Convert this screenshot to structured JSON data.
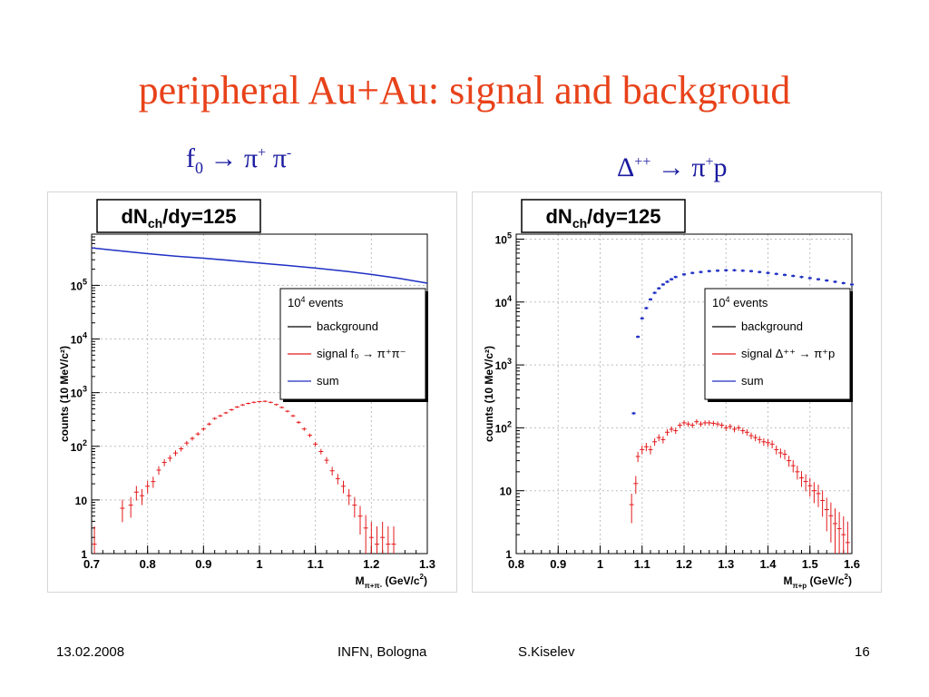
{
  "slide": {
    "title": "peripheral Au+Au: signal and backgroud",
    "subtitle_left": {
      "p1": "f",
      "p1sub": "0",
      "arrow": "→",
      "p2": "π",
      "p2sup": "+",
      "p3": "π",
      "p3sup": "-"
    },
    "subtitle_right": {
      "p1": "Δ",
      "p1sup": "++",
      "arrow": "→",
      "p2": "π",
      "p2sup": "+",
      "p3": "p"
    },
    "footer": {
      "date": "13.02.2008",
      "place": "INFN, Bologna",
      "author": "S.Kiselev",
      "page": "16"
    }
  },
  "colors": {
    "title": "#e8421a",
    "subhead": "#1a1aa0",
    "signal": "#e31a1c",
    "sum": "#1f2fc4",
    "background": "#000000",
    "grid": "#bdbdbd"
  },
  "chart_data": [
    {
      "type": "scatter",
      "title": "dNch/dy=125",
      "title_parts": {
        "a": "dN",
        "sub": "ch",
        "b": "/dy=125"
      },
      "ylabel": "counts (10 MeV/c²)",
      "xlabel": "Mπ+π- (GeV/c²)",
      "xlabel_parts": {
        "a": "M",
        "sub": "π+π-",
        "b": " (GeV/c",
        "sup": "2",
        "c": ")"
      },
      "xlim": [
        0.7,
        1.3
      ],
      "ylim": [
        1,
        900000
      ],
      "yscale": "log",
      "xticks": [
        0.7,
        0.8,
        0.9,
        1.0,
        1.1,
        1.2,
        1.3
      ],
      "xtick_labels": [
        "0.7",
        "0.8",
        "0.9",
        "1",
        "1.1",
        "1.2",
        "1.3"
      ],
      "yticks": [
        1,
        10,
        100,
        1000,
        10000,
        100000
      ],
      "ytick_labels": [
        {
          "base": "1",
          "exp": ""
        },
        {
          "base": "10",
          "exp": ""
        },
        {
          "base": "10",
          "exp": "2"
        },
        {
          "base": "10",
          "exp": "3"
        },
        {
          "base": "10",
          "exp": "4"
        },
        {
          "base": "10",
          "exp": "5"
        }
      ],
      "grid": true,
      "legend": {
        "position": "right",
        "header": {
          "base": "10",
          "exp": "4",
          "rest": " events"
        },
        "entries": [
          {
            "label": "background",
            "color": "#000000"
          },
          {
            "label": "signal f₀ → π⁺π⁻",
            "color": "#e31a1c"
          },
          {
            "label": "sum",
            "color": "#1f2fc4"
          }
        ]
      },
      "series": [
        {
          "name": "sum",
          "style": "line",
          "x": [
            0.7,
            0.75,
            0.8,
            0.85,
            0.9,
            0.95,
            1.0,
            1.05,
            1.1,
            1.15,
            1.2,
            1.25,
            1.3
          ],
          "y": [
            500000,
            440000,
            390000,
            350000,
            320000,
            290000,
            260000,
            235000,
            210000,
            185000,
            160000,
            135000,
            110000
          ]
        },
        {
          "name": "signal",
          "style": "errorbars",
          "x": [
            0.705,
            0.755,
            0.77,
            0.78,
            0.79,
            0.8,
            0.81,
            0.82,
            0.83,
            0.84,
            0.85,
            0.86,
            0.87,
            0.88,
            0.89,
            0.9,
            0.91,
            0.92,
            0.93,
            0.94,
            0.95,
            0.96,
            0.97,
            0.98,
            0.99,
            1.0,
            1.01,
            1.02,
            1.03,
            1.04,
            1.05,
            1.06,
            1.07,
            1.08,
            1.09,
            1.1,
            1.11,
            1.12,
            1.13,
            1.14,
            1.15,
            1.16,
            1.17,
            1.18,
            1.19,
            1.2,
            1.21,
            1.22,
            1.23,
            1.24
          ],
          "y": [
            1.5,
            7,
            8,
            14,
            12,
            18,
            22,
            36,
            50,
            60,
            75,
            90,
            115,
            140,
            170,
            210,
            260,
            330,
            370,
            420,
            480,
            540,
            590,
            630,
            660,
            680,
            690,
            660,
            600,
            530,
            450,
            370,
            280,
            210,
            160,
            110,
            80,
            55,
            35,
            25,
            18,
            12,
            8,
            5,
            3,
            2,
            1.5,
            2,
            1.5,
            1.5
          ]
        }
      ]
    },
    {
      "type": "scatter",
      "title": "dNch/dy=125",
      "title_parts": {
        "a": "dN",
        "sub": "ch",
        "b": "/dy=125"
      },
      "ylabel": "counts (10 MeV/c²)",
      "xlabel": "Mπ+p (GeV/c²)",
      "xlabel_parts": {
        "a": "M",
        "sub": "π+p",
        "b": " (GeV/c",
        "sup": "2",
        "c": ")"
      },
      "xlim": [
        0.8,
        1.6
      ],
      "ylim": [
        1,
        120000
      ],
      "yscale": "log",
      "xticks": [
        0.8,
        0.9,
        1.0,
        1.1,
        1.2,
        1.3,
        1.4,
        1.5,
        1.6
      ],
      "xtick_labels": [
        "0.8",
        "0.9",
        "1",
        "1.1",
        "1.2",
        "1.3",
        "1.4",
        "1.5",
        "1.6"
      ],
      "yticks": [
        1,
        10,
        100,
        1000,
        10000,
        100000
      ],
      "ytick_labels": [
        {
          "base": "1",
          "exp": ""
        },
        {
          "base": "10",
          "exp": ""
        },
        {
          "base": "10",
          "exp": "2"
        },
        {
          "base": "10",
          "exp": "3"
        },
        {
          "base": "10",
          "exp": "4"
        },
        {
          "base": "10",
          "exp": "5"
        }
      ],
      "grid": true,
      "legend": {
        "position": "right",
        "header": {
          "base": "10",
          "exp": "4",
          "rest": " events"
        },
        "entries": [
          {
            "label": "background",
            "color": "#000000"
          },
          {
            "label": "signal Δ⁺⁺ → π⁺p",
            "color": "#e31a1c"
          },
          {
            "label": "sum",
            "color": "#1f2fc4"
          }
        ]
      },
      "series": [
        {
          "name": "sum",
          "style": "markers",
          "x": [
            1.08,
            1.09,
            1.1,
            1.11,
            1.12,
            1.13,
            1.14,
            1.15,
            1.16,
            1.17,
            1.18,
            1.2,
            1.22,
            1.24,
            1.26,
            1.28,
            1.3,
            1.32,
            1.34,
            1.36,
            1.38,
            1.4,
            1.42,
            1.44,
            1.46,
            1.48,
            1.5,
            1.52,
            1.54,
            1.56,
            1.58,
            1.6
          ],
          "y": [
            170,
            2800,
            5500,
            8000,
            11000,
            14000,
            16500,
            19000,
            21000,
            23000,
            25000,
            27500,
            29000,
            30000,
            31000,
            31500,
            32000,
            32000,
            31500,
            31000,
            30000,
            29000,
            28000,
            27000,
            26000,
            25000,
            24000,
            23000,
            22000,
            21000,
            20000,
            19000
          ]
        },
        {
          "name": "signal",
          "style": "errorbars",
          "x": [
            1.075,
            1.085,
            1.09,
            1.1,
            1.11,
            1.12,
            1.13,
            1.14,
            1.15,
            1.16,
            1.17,
            1.18,
            1.19,
            1.2,
            1.21,
            1.22,
            1.23,
            1.24,
            1.25,
            1.26,
            1.27,
            1.28,
            1.29,
            1.3,
            1.31,
            1.32,
            1.33,
            1.34,
            1.35,
            1.36,
            1.37,
            1.38,
            1.39,
            1.4,
            1.41,
            1.42,
            1.43,
            1.44,
            1.45,
            1.46,
            1.47,
            1.48,
            1.49,
            1.5,
            1.51,
            1.52,
            1.53,
            1.54,
            1.55,
            1.56,
            1.57,
            1.58,
            1.59
          ],
          "y": [
            6,
            13,
            35,
            45,
            50,
            45,
            60,
            70,
            65,
            85,
            95,
            90,
            110,
            120,
            115,
            110,
            125,
            115,
            120,
            120,
            118,
            115,
            110,
            100,
            105,
            95,
            100,
            90,
            85,
            75,
            70,
            65,
            60,
            58,
            55,
            45,
            40,
            38,
            30,
            25,
            20,
            16,
            14,
            12,
            10,
            9,
            7,
            5,
            4,
            3,
            2.5,
            2,
            1.5
          ]
        }
      ]
    }
  ]
}
